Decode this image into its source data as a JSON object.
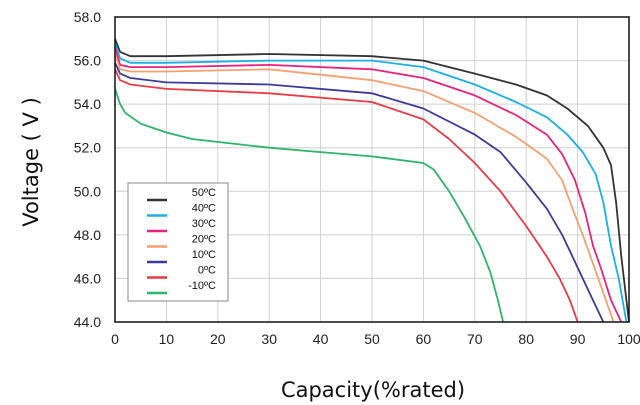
{
  "chart_data": {
    "type": "line",
    "title": "",
    "xlabel": "Capacity(%rated)",
    "ylabel": "Voltage ( V )",
    "xlim": [
      0,
      100
    ],
    "ylim": [
      44,
      58
    ],
    "x_ticks": [
      "0",
      "10",
      "20",
      "30",
      "40",
      "50",
      "60",
      "70",
      "80",
      "90",
      "100"
    ],
    "y_ticks": [
      "44.0",
      "46.0",
      "48.0",
      "50.0",
      "52.0",
      "54.0",
      "56.0",
      "58.0"
    ],
    "grid": true,
    "legend_position": "bottom-left",
    "series": [
      {
        "name": "50ºC",
        "color": "#333333",
        "points": [
          [
            0,
            57.0
          ],
          [
            1,
            56.4
          ],
          [
            3,
            56.2
          ],
          [
            10,
            56.2
          ],
          [
            30,
            56.3
          ],
          [
            50,
            56.2
          ],
          [
            60,
            56.0
          ],
          [
            70,
            55.4
          ],
          [
            78,
            54.9
          ],
          [
            84,
            54.4
          ],
          [
            88,
            53.8
          ],
          [
            92,
            53.0
          ],
          [
            95,
            52.0
          ],
          [
            96.5,
            51.2
          ],
          [
            97.5,
            49.5
          ],
          [
            98.5,
            47.0
          ],
          [
            99.5,
            45.0
          ],
          [
            100,
            44.0
          ]
        ]
      },
      {
        "name": "40ºC",
        "color": "#1ab0e6",
        "points": [
          [
            0,
            56.8
          ],
          [
            1,
            56.1
          ],
          [
            3,
            55.9
          ],
          [
            10,
            55.9
          ],
          [
            30,
            56.0
          ],
          [
            50,
            56.0
          ],
          [
            60,
            55.7
          ],
          [
            70,
            54.9
          ],
          [
            78,
            54.1
          ],
          [
            84,
            53.4
          ],
          [
            88,
            52.6
          ],
          [
            91,
            51.8
          ],
          [
            93.5,
            50.8
          ],
          [
            95,
            49.5
          ],
          [
            96.5,
            47.5
          ],
          [
            98,
            46.0
          ],
          [
            99.5,
            44.0
          ]
        ]
      },
      {
        "name": "30ºC",
        "color": "#e8237e",
        "points": [
          [
            0,
            56.6
          ],
          [
            1,
            55.8
          ],
          [
            3,
            55.7
          ],
          [
            10,
            55.7
          ],
          [
            30,
            55.8
          ],
          [
            50,
            55.6
          ],
          [
            60,
            55.2
          ],
          [
            70,
            54.4
          ],
          [
            78,
            53.5
          ],
          [
            84,
            52.6
          ],
          [
            87,
            51.7
          ],
          [
            89.5,
            50.5
          ],
          [
            91.5,
            49.0
          ],
          [
            93,
            47.5
          ],
          [
            94.5,
            46.5
          ],
          [
            96.5,
            45.0
          ],
          [
            98.5,
            44.0
          ]
        ]
      },
      {
        "name": "20ºC",
        "color": "#f4a070",
        "points": [
          [
            0,
            56.3
          ],
          [
            1,
            55.6
          ],
          [
            3,
            55.5
          ],
          [
            10,
            55.5
          ],
          [
            30,
            55.6
          ],
          [
            50,
            55.1
          ],
          [
            60,
            54.6
          ],
          [
            70,
            53.6
          ],
          [
            78,
            52.5
          ],
          [
            84,
            51.5
          ],
          [
            87,
            50.5
          ],
          [
            89,
            49.2
          ],
          [
            91,
            48.0
          ],
          [
            92.5,
            47.0
          ],
          [
            94,
            46.0
          ],
          [
            95.5,
            45.0
          ],
          [
            97,
            44.0
          ]
        ]
      },
      {
        "name": "10ºC",
        "color": "#3c3c96",
        "points": [
          [
            0,
            55.9
          ],
          [
            1,
            55.4
          ],
          [
            3,
            55.2
          ],
          [
            10,
            55.0
          ],
          [
            30,
            54.9
          ],
          [
            50,
            54.5
          ],
          [
            60,
            53.8
          ],
          [
            70,
            52.6
          ],
          [
            75,
            51.8
          ],
          [
            80,
            50.4
          ],
          [
            84,
            49.2
          ],
          [
            87,
            48.0
          ],
          [
            89,
            47.0
          ],
          [
            91,
            46.0
          ],
          [
            93,
            45.0
          ],
          [
            95,
            44.0
          ]
        ]
      },
      {
        "name": "0ºC",
        "color": "#e83c46",
        "points": [
          [
            0,
            55.6
          ],
          [
            1,
            55.1
          ],
          [
            3,
            54.9
          ],
          [
            10,
            54.7
          ],
          [
            30,
            54.5
          ],
          [
            50,
            54.1
          ],
          [
            60,
            53.3
          ],
          [
            65,
            52.4
          ],
          [
            70,
            51.3
          ],
          [
            75,
            50.0
          ],
          [
            80,
            48.4
          ],
          [
            84,
            47.0
          ],
          [
            86.5,
            46.0
          ],
          [
            88.5,
            45.0
          ],
          [
            90,
            44.0
          ]
        ]
      },
      {
        "name": "-10ºC",
        "color": "#2fb46a",
        "points": [
          [
            0,
            54.7
          ],
          [
            1,
            54.0
          ],
          [
            2,
            53.6
          ],
          [
            5,
            53.1
          ],
          [
            10,
            52.7
          ],
          [
            15,
            52.4
          ],
          [
            30,
            52.0
          ],
          [
            40,
            51.8
          ],
          [
            50,
            51.6
          ],
          [
            60,
            51.3
          ],
          [
            62,
            51.0
          ],
          [
            65,
            50.0
          ],
          [
            68,
            48.8
          ],
          [
            71,
            47.5
          ],
          [
            73,
            46.3
          ],
          [
            74.5,
            45.0
          ],
          [
            75.5,
            44.0
          ]
        ]
      }
    ]
  }
}
